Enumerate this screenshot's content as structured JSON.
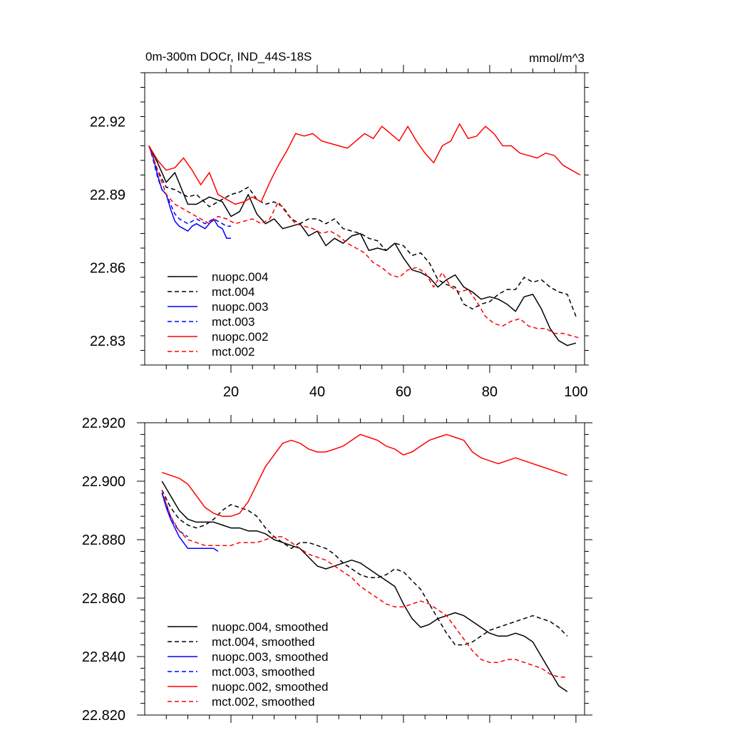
{
  "chart_data": [
    {
      "type": "line",
      "title": "0m-300m DOCr, IND_44S-18S",
      "units": "mmol/m^3",
      "xlim": [
        0,
        102
      ],
      "ylim": [
        22.82,
        22.94
      ],
      "x_ticks": [
        20,
        40,
        60,
        80,
        100
      ],
      "x_tick_labels": [
        "20",
        "40",
        "60",
        "80",
        "100"
      ],
      "y_ticks": [
        22.83,
        22.86,
        22.89,
        22.92
      ],
      "y_tick_labels": [
        "22.83",
        "22.86",
        "22.89",
        "22.92"
      ],
      "grid": false,
      "legend_position": "lower-left",
      "series": [
        {
          "name": "nuopc.004",
          "color": "#000000",
          "dash": "solid",
          "x": [
            1,
            3,
            5,
            7,
            10,
            12,
            15,
            18,
            20,
            22,
            24,
            26,
            28,
            30,
            32,
            34,
            36,
            38,
            40,
            42,
            44,
            46,
            48,
            50,
            52,
            54,
            56,
            58,
            60,
            62,
            64,
            66,
            68,
            70,
            72,
            74,
            76,
            78,
            80,
            82,
            84,
            86,
            88,
            90,
            92,
            94,
            96,
            98,
            100
          ],
          "y": [
            22.91,
            22.903,
            22.895,
            22.899,
            22.886,
            22.886,
            22.889,
            22.887,
            22.881,
            22.883,
            22.89,
            22.882,
            22.878,
            22.88,
            22.876,
            22.877,
            22.878,
            22.873,
            22.875,
            22.869,
            22.872,
            22.87,
            22.873,
            22.874,
            22.867,
            22.868,
            22.867,
            22.87,
            22.864,
            22.859,
            22.858,
            22.856,
            22.852,
            22.855,
            22.857,
            22.852,
            22.85,
            22.847,
            22.848,
            22.847,
            22.845,
            22.842,
            22.848,
            22.849,
            22.843,
            22.835,
            22.83,
            22.828,
            22.829
          ]
        },
        {
          "name": "mct.004",
          "color": "#000000",
          "dash": "dashed",
          "x": [
            1,
            3,
            5,
            7,
            10,
            12,
            15,
            18,
            20,
            22,
            24,
            26,
            28,
            30,
            32,
            34,
            36,
            38,
            40,
            42,
            44,
            46,
            48,
            50,
            52,
            54,
            56,
            58,
            60,
            62,
            64,
            66,
            68,
            70,
            72,
            74,
            76,
            78,
            80,
            82,
            84,
            86,
            88,
            90,
            92,
            94,
            96,
            98,
            100
          ],
          "y": [
            22.91,
            22.9,
            22.893,
            22.892,
            22.889,
            22.89,
            22.885,
            22.888,
            22.89,
            22.891,
            22.893,
            22.888,
            22.886,
            22.887,
            22.885,
            22.88,
            22.878,
            22.88,
            22.88,
            22.878,
            22.88,
            22.876,
            22.875,
            22.874,
            22.872,
            22.871,
            22.867,
            22.87,
            22.869,
            22.865,
            22.866,
            22.862,
            22.855,
            22.853,
            22.852,
            22.845,
            22.843,
            22.845,
            22.846,
            22.849,
            22.851,
            22.851,
            22.856,
            22.854,
            22.855,
            22.852,
            22.85,
            22.849,
            22.84
          ]
        },
        {
          "name": "nuopc.003",
          "color": "#0000ff",
          "dash": "solid",
          "x": [
            1,
            2,
            3,
            4,
            5,
            6,
            7,
            8,
            9,
            10,
            11,
            12,
            13,
            14,
            15,
            16,
            17,
            18,
            19,
            20
          ],
          "y": [
            22.91,
            22.905,
            22.898,
            22.892,
            22.89,
            22.884,
            22.879,
            22.877,
            22.876,
            22.875,
            22.877,
            22.878,
            22.877,
            22.876,
            22.878,
            22.88,
            22.877,
            22.876,
            22.872,
            22.872
          ]
        },
        {
          "name": "mct.003",
          "color": "#0000ff",
          "dash": "dashed",
          "x": [
            1,
            2,
            3,
            4,
            5,
            6,
            7,
            8,
            9,
            10,
            11,
            12,
            13,
            14,
            15,
            16,
            17,
            18,
            19,
            20
          ],
          "y": [
            22.91,
            22.904,
            22.897,
            22.892,
            22.89,
            22.886,
            22.882,
            22.88,
            22.879,
            22.878,
            22.879,
            22.88,
            22.879,
            22.878,
            22.879,
            22.88,
            22.879,
            22.878,
            22.877,
            22.877
          ]
        },
        {
          "name": "nuopc.002",
          "color": "#ff0000",
          "dash": "solid",
          "x": [
            1,
            3,
            5,
            7,
            9,
            11,
            13,
            15,
            17,
            19,
            21,
            23,
            25,
            27,
            29,
            31,
            33,
            35,
            37,
            39,
            41,
            43,
            45,
            47,
            49,
            51,
            53,
            55,
            57,
            59,
            61,
            63,
            65,
            67,
            69,
            71,
            73,
            75,
            77,
            79,
            81,
            83,
            85,
            87,
            89,
            91,
            93,
            95,
            97,
            99,
            101
          ],
          "y": [
            22.91,
            22.904,
            22.9,
            22.901,
            22.905,
            22.9,
            22.894,
            22.899,
            22.89,
            22.888,
            22.886,
            22.887,
            22.889,
            22.887,
            22.895,
            22.902,
            22.908,
            22.915,
            22.914,
            22.915,
            22.912,
            22.911,
            22.91,
            22.909,
            22.912,
            22.915,
            22.913,
            22.918,
            22.915,
            22.912,
            22.918,
            22.912,
            22.907,
            22.903,
            22.91,
            22.912,
            22.919,
            22.913,
            22.914,
            22.918,
            22.915,
            22.91,
            22.91,
            22.907,
            22.906,
            22.905,
            22.907,
            22.906,
            22.902,
            22.9,
            22.898
          ]
        },
        {
          "name": "mct.002",
          "color": "#ff0000",
          "dash": "dashed",
          "x": [
            1,
            3,
            5,
            7,
            9,
            11,
            13,
            15,
            17,
            19,
            21,
            23,
            25,
            27,
            29,
            31,
            33,
            35,
            37,
            39,
            41,
            43,
            45,
            47,
            49,
            51,
            53,
            55,
            57,
            59,
            61,
            63,
            65,
            67,
            69,
            71,
            73,
            75,
            77,
            79,
            81,
            83,
            85,
            87,
            89,
            91,
            93,
            95,
            97,
            99,
            101
          ],
          "y": [
            22.91,
            22.9,
            22.89,
            22.886,
            22.884,
            22.882,
            22.88,
            22.878,
            22.881,
            22.88,
            22.878,
            22.879,
            22.88,
            22.878,
            22.88,
            22.887,
            22.882,
            22.878,
            22.877,
            22.876,
            22.874,
            22.875,
            22.873,
            22.87,
            22.868,
            22.866,
            22.862,
            22.86,
            22.857,
            22.856,
            22.859,
            22.86,
            22.858,
            22.852,
            22.858,
            22.852,
            22.85,
            22.851,
            22.846,
            22.84,
            22.837,
            22.836,
            22.838,
            22.839,
            22.836,
            22.835,
            22.835,
            22.833,
            22.833,
            22.832,
            22.831
          ]
        }
      ]
    },
    {
      "type": "line",
      "title": "",
      "units": "",
      "xlim": [
        0,
        102
      ],
      "ylim": [
        22.82,
        22.92
      ],
      "x_ticks": [
        20,
        40,
        60,
        80,
        100
      ],
      "x_tick_labels": [],
      "y_ticks": [
        22.82,
        22.84,
        22.86,
        22.88,
        22.9,
        22.92
      ],
      "y_tick_labels": [
        "22.820",
        "22.840",
        "22.860",
        "22.880",
        "22.900",
        "22.920"
      ],
      "grid": false,
      "legend_position": "lower-left",
      "series": [
        {
          "name": "nuopc.004, smoothed",
          "color": "#000000",
          "dash": "solid",
          "x": [
            4,
            6,
            8,
            10,
            12,
            14,
            16,
            18,
            20,
            22,
            24,
            26,
            28,
            30,
            32,
            34,
            36,
            38,
            40,
            42,
            44,
            46,
            48,
            50,
            52,
            54,
            56,
            58,
            60,
            62,
            64,
            66,
            68,
            70,
            72,
            74,
            76,
            78,
            80,
            82,
            84,
            86,
            88,
            90,
            92,
            94,
            96,
            98
          ],
          "y": [
            22.9,
            22.895,
            22.89,
            22.887,
            22.886,
            22.886,
            22.886,
            22.885,
            22.884,
            22.884,
            22.883,
            22.883,
            22.882,
            22.88,
            22.879,
            22.878,
            22.877,
            22.874,
            22.871,
            22.87,
            22.871,
            22.872,
            22.873,
            22.872,
            22.87,
            22.868,
            22.866,
            22.864,
            22.858,
            22.853,
            22.85,
            22.851,
            22.853,
            22.854,
            22.855,
            22.854,
            22.852,
            22.85,
            22.848,
            22.847,
            22.847,
            22.848,
            22.847,
            22.845,
            22.84,
            22.835,
            22.83,
            22.828
          ]
        },
        {
          "name": "mct.004, smoothed",
          "color": "#000000",
          "dash": "dashed",
          "x": [
            4,
            6,
            8,
            10,
            12,
            14,
            16,
            18,
            20,
            22,
            24,
            26,
            28,
            30,
            32,
            34,
            36,
            38,
            40,
            42,
            44,
            46,
            48,
            50,
            52,
            54,
            56,
            58,
            60,
            62,
            64,
            66,
            68,
            70,
            72,
            74,
            76,
            78,
            80,
            82,
            84,
            86,
            88,
            90,
            92,
            94,
            96,
            98
          ],
          "y": [
            22.897,
            22.891,
            22.887,
            22.885,
            22.884,
            22.885,
            22.887,
            22.89,
            22.892,
            22.891,
            22.89,
            22.888,
            22.884,
            22.881,
            22.879,
            22.877,
            22.879,
            22.879,
            22.878,
            22.877,
            22.875,
            22.872,
            22.87,
            22.868,
            22.867,
            22.867,
            22.868,
            22.87,
            22.869,
            22.866,
            22.863,
            22.858,
            22.853,
            22.848,
            22.844,
            22.844,
            22.845,
            22.847,
            22.849,
            22.85,
            22.851,
            22.852,
            22.853,
            22.854,
            22.853,
            22.852,
            22.85,
            22.847
          ]
        },
        {
          "name": "nuopc.003, smoothed",
          "color": "#0000ff",
          "dash": "solid",
          "x": [
            4,
            5,
            6,
            7,
            8,
            9,
            10,
            11,
            12,
            13,
            14,
            15,
            16,
            17
          ],
          "y": [
            22.896,
            22.891,
            22.887,
            22.884,
            22.881,
            22.879,
            22.877,
            22.877,
            22.877,
            22.877,
            22.877,
            22.877,
            22.877,
            22.876
          ]
        },
        {
          "name": "mct.003, smoothed",
          "color": "#0000ff",
          "dash": "dashed",
          "x": [
            4,
            5,
            6,
            7,
            8,
            9,
            10
          ],
          "y": [
            22.896,
            22.892,
            22.888,
            22.885,
            22.883,
            22.882,
            22.881
          ]
        },
        {
          "name": "nuopc.002, smoothed",
          "color": "#ff0000",
          "dash": "solid",
          "x": [
            4,
            6,
            8,
            10,
            12,
            14,
            16,
            18,
            20,
            22,
            24,
            26,
            28,
            30,
            32,
            34,
            36,
            38,
            40,
            42,
            44,
            46,
            48,
            50,
            52,
            54,
            56,
            58,
            60,
            62,
            64,
            66,
            68,
            70,
            72,
            74,
            76,
            78,
            80,
            82,
            84,
            86,
            88,
            90,
            92,
            94,
            96,
            98
          ],
          "y": [
            22.903,
            22.902,
            22.901,
            22.899,
            22.895,
            22.891,
            22.889,
            22.888,
            22.888,
            22.889,
            22.893,
            22.899,
            22.905,
            22.909,
            22.913,
            22.914,
            22.913,
            22.911,
            22.91,
            22.91,
            22.911,
            22.912,
            22.914,
            22.916,
            22.915,
            22.914,
            22.912,
            22.911,
            22.909,
            22.91,
            22.912,
            22.914,
            22.915,
            22.916,
            22.915,
            22.914,
            22.91,
            22.908,
            22.907,
            22.906,
            22.907,
            22.908,
            22.907,
            22.906,
            22.905,
            22.904,
            22.903,
            22.902
          ]
        },
        {
          "name": "mct.002, smoothed",
          "color": "#ff0000",
          "dash": "dashed",
          "x": [
            4,
            6,
            8,
            10,
            12,
            14,
            16,
            18,
            20,
            22,
            24,
            26,
            28,
            30,
            32,
            34,
            36,
            38,
            40,
            42,
            44,
            46,
            48,
            50,
            52,
            54,
            56,
            58,
            60,
            62,
            64,
            66,
            68,
            70,
            72,
            74,
            76,
            78,
            80,
            82,
            84,
            86,
            88,
            90,
            92,
            94,
            96,
            98
          ],
          "y": [
            22.897,
            22.888,
            22.883,
            22.88,
            22.879,
            22.878,
            22.878,
            22.878,
            22.878,
            22.879,
            22.879,
            22.879,
            22.88,
            22.881,
            22.881,
            22.879,
            22.877,
            22.875,
            22.874,
            22.873,
            22.871,
            22.869,
            22.867,
            22.864,
            22.862,
            22.86,
            22.858,
            22.857,
            22.857,
            22.858,
            22.859,
            22.858,
            22.856,
            22.854,
            22.85,
            22.846,
            22.842,
            22.839,
            22.838,
            22.838,
            22.839,
            22.839,
            22.838,
            22.837,
            22.836,
            22.834,
            22.833,
            22.833
          ]
        }
      ]
    }
  ]
}
